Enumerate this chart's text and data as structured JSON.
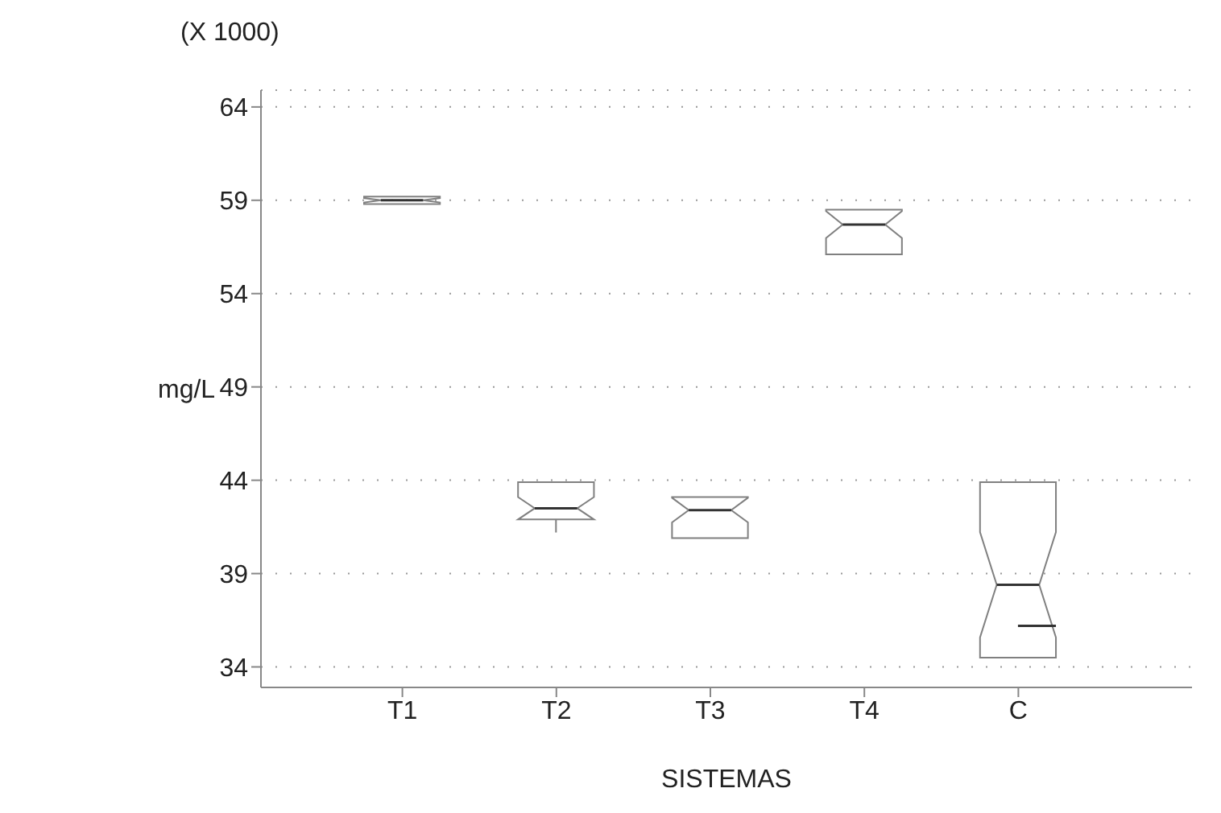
{
  "chart_data": {
    "type": "box",
    "xlabel": "SISTEMAS",
    "ylabel": "mg/L",
    "annotations": [
      "(X 1000)"
    ],
    "categories": [
      "T1",
      "T2",
      "T3",
      "T4",
      "C"
    ],
    "boxes": [
      {
        "low": 58.8,
        "q1": 58.8,
        "median": 59.0,
        "q3": 59.2,
        "high": 59.2
      },
      {
        "low": 41.2,
        "q1": 41.9,
        "median": 42.5,
        "q3": 43.9,
        "high": 43.9
      },
      {
        "low": 40.9,
        "q1": 40.9,
        "median": 42.4,
        "q3": 43.1,
        "high": 43.1
      },
      {
        "low": 56.1,
        "q1": 56.1,
        "median": 57.7,
        "q3": 58.5,
        "high": 58.5
      },
      {
        "low": 34.5,
        "q1": 34.5,
        "median": 38.4,
        "q3": 43.9,
        "high": 43.9,
        "mean": 36.2
      }
    ],
    "color": "#808080",
    "ylim": [
      32.9,
      64.9
    ],
    "yticks": [
      34,
      39,
      44,
      49,
      54,
      59,
      64
    ],
    "grid": "y"
  }
}
